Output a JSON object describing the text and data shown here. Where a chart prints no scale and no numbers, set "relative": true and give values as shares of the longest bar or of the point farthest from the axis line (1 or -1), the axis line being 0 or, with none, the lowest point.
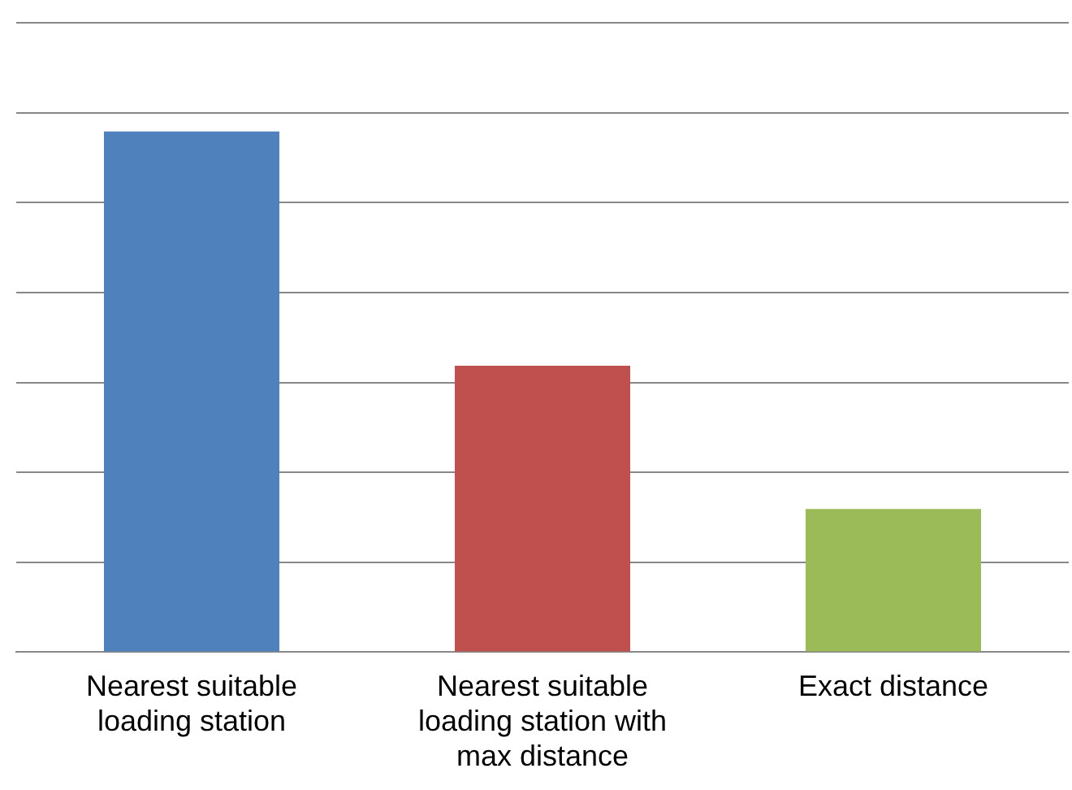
{
  "chart_data": {
    "type": "bar",
    "relative": true,
    "categories": [
      "Nearest suitable loading station",
      "Nearest suitable loading station with max distance",
      "Exact distance"
    ],
    "values": [
      1,
      0.55,
      0.275
    ],
    "colors": [
      "#4f81bd",
      "#c0504d",
      "#9bbb59"
    ],
    "grid": "y",
    "legend": false
  }
}
